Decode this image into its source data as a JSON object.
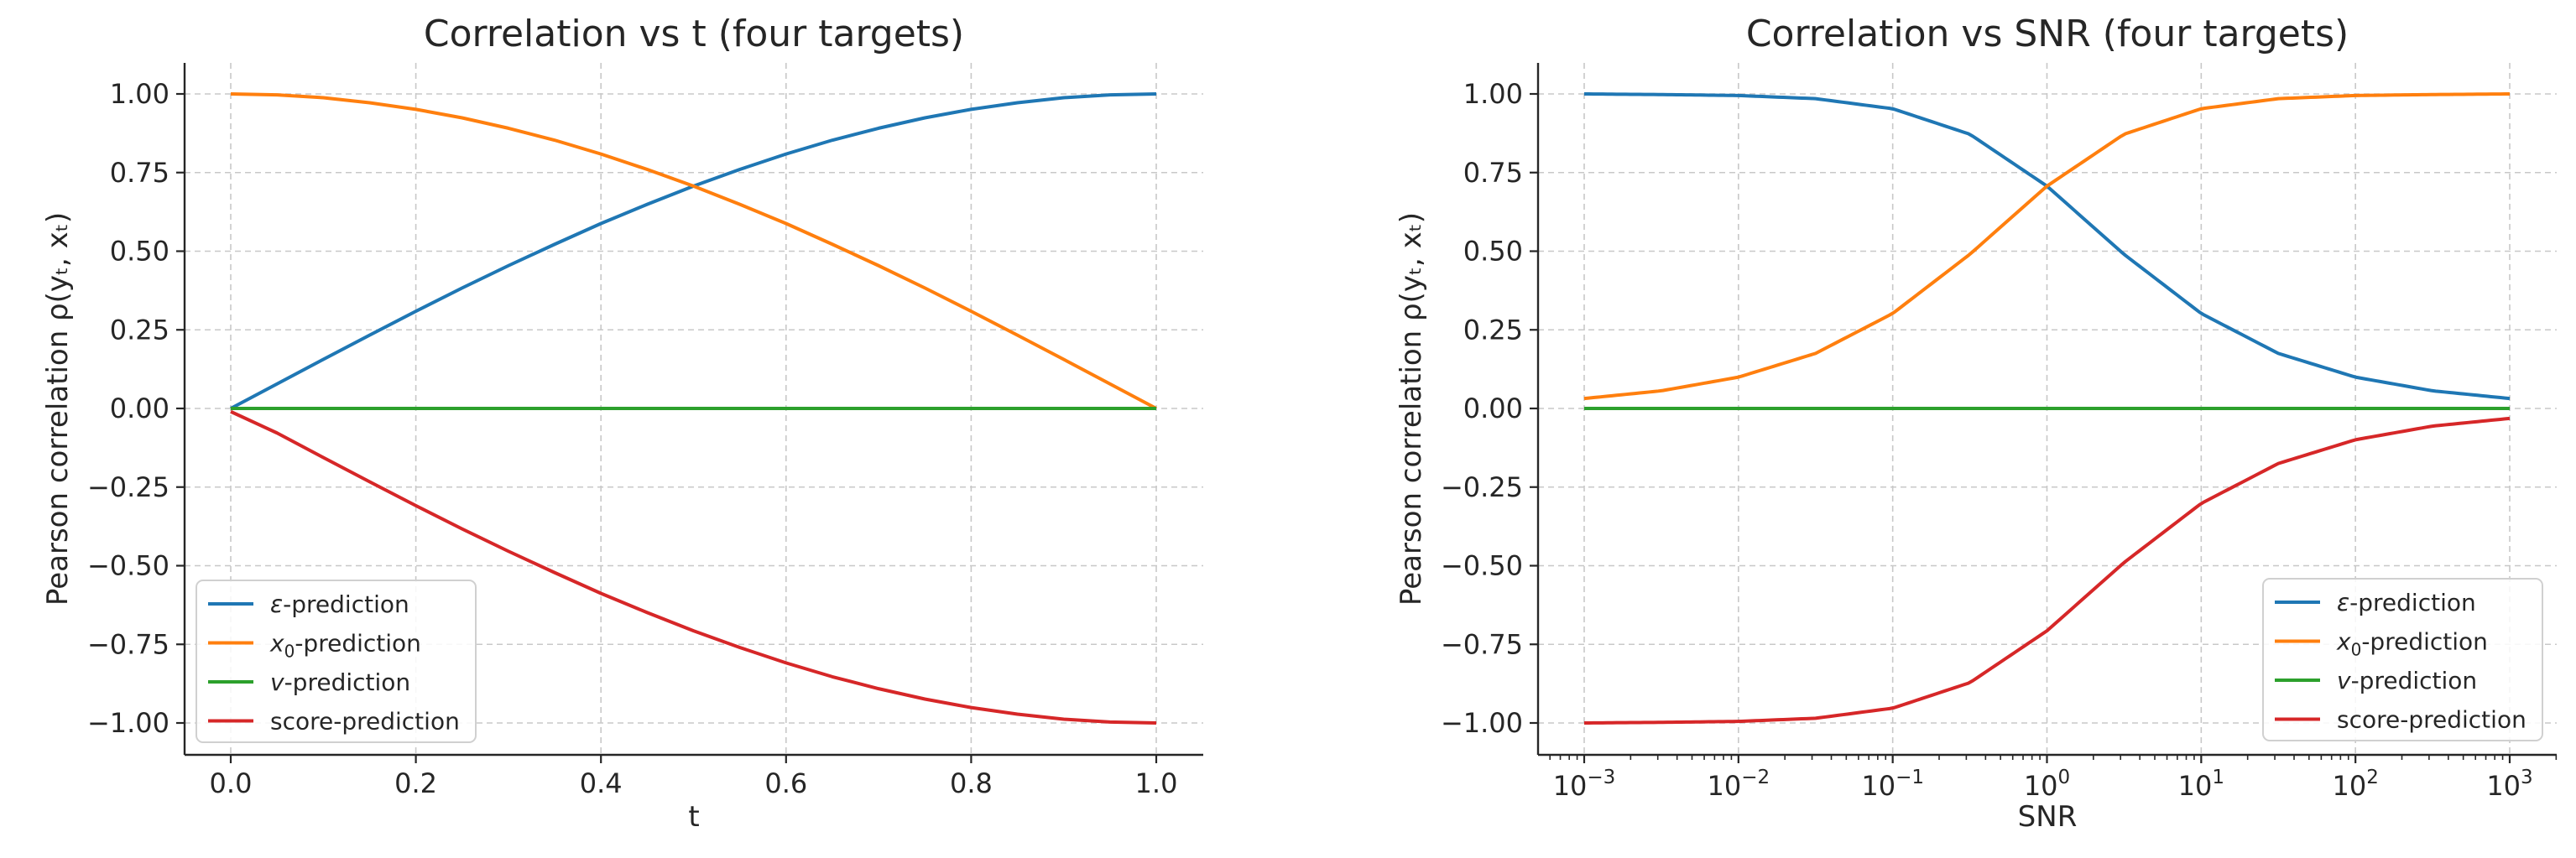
{
  "chart_data": [
    {
      "type": "line",
      "title": "Correlation vs t (four targets)",
      "xlabel": "t",
      "ylabel": "Pearson correlation ρ(yₜ, xₜ)",
      "xscale": "linear",
      "xlim": [
        0.0,
        1.0
      ],
      "ylim": [
        -1.0,
        1.0
      ],
      "xticks": [
        0.0,
        0.2,
        0.4,
        0.6,
        0.8,
        1.0
      ],
      "xtick_labels": [
        "0.0",
        "0.2",
        "0.4",
        "0.6",
        "0.8",
        "1.0"
      ],
      "yticks": [
        -1.0,
        -0.75,
        -0.5,
        -0.25,
        0.0,
        0.25,
        0.5,
        0.75,
        1.0
      ],
      "ytick_labels": [
        "−1.00",
        "−0.75",
        "−0.50",
        "−0.25",
        "0.00",
        "0.25",
        "0.50",
        "0.75",
        "1.00"
      ],
      "grid": true,
      "legend_position": "lower-left",
      "series": [
        {
          "name": "ε-prediction",
          "legend_main": "ε",
          "legend_sub": "",
          "legend_suffix": "-prediction",
          "color": "#1f77b4",
          "x": [
            0.0,
            0.05,
            0.1,
            0.15,
            0.2,
            0.25,
            0.3,
            0.35,
            0.4,
            0.45,
            0.5,
            0.55,
            0.6,
            0.65,
            0.7,
            0.75,
            0.8,
            0.85,
            0.9,
            0.95,
            1.0
          ],
          "y": [
            0.0,
            0.078,
            0.156,
            0.233,
            0.309,
            0.383,
            0.454,
            0.522,
            0.588,
            0.649,
            0.707,
            0.76,
            0.809,
            0.853,
            0.891,
            0.924,
            0.951,
            0.972,
            0.988,
            0.997,
            1.0
          ]
        },
        {
          "name": "x₀-prediction",
          "legend_main": "x",
          "legend_sub": "0",
          "legend_suffix": "-prediction",
          "color": "#ff7f0e",
          "x": [
            0.0,
            0.05,
            0.1,
            0.15,
            0.2,
            0.25,
            0.3,
            0.35,
            0.4,
            0.45,
            0.5,
            0.55,
            0.6,
            0.65,
            0.7,
            0.75,
            0.8,
            0.85,
            0.9,
            0.95,
            1.0
          ],
          "y": [
            1.0,
            0.997,
            0.988,
            0.972,
            0.951,
            0.924,
            0.891,
            0.853,
            0.809,
            0.76,
            0.707,
            0.649,
            0.588,
            0.522,
            0.454,
            0.383,
            0.309,
            0.233,
            0.156,
            0.078,
            0.0
          ]
        },
        {
          "name": "v-prediction",
          "legend_main": "v",
          "legend_sub": "",
          "legend_suffix": "-prediction",
          "color": "#2ca02c",
          "x": [
            0.0,
            0.5,
            1.0
          ],
          "y": [
            0.0,
            0.0,
            0.0
          ]
        },
        {
          "name": "score-prediction",
          "legend_main": "",
          "legend_sub": "",
          "legend_suffix": "score-prediction",
          "color": "#d62728",
          "x": [
            0.0,
            0.05,
            0.1,
            0.15,
            0.2,
            0.25,
            0.3,
            0.35,
            0.4,
            0.45,
            0.5,
            0.55,
            0.6,
            0.65,
            0.7,
            0.75,
            0.8,
            0.85,
            0.9,
            0.95,
            1.0
          ],
          "y": [
            -0.01,
            -0.078,
            -0.156,
            -0.233,
            -0.309,
            -0.383,
            -0.454,
            -0.522,
            -0.588,
            -0.649,
            -0.707,
            -0.76,
            -0.809,
            -0.853,
            -0.891,
            -0.924,
            -0.951,
            -0.972,
            -0.988,
            -0.997,
            -1.0
          ]
        }
      ]
    },
    {
      "type": "line",
      "title": "Correlation vs SNR (four targets)",
      "xlabel": "SNR",
      "ylabel": "Pearson correlation ρ(yₜ, xₜ)",
      "xscale": "log",
      "xlim": [
        0.001,
        1000
      ],
      "ylim": [
        -1.0,
        1.0
      ],
      "xticks": [
        0.001,
        0.01,
        0.1,
        1,
        10,
        100,
        1000
      ],
      "xtick_base": "10",
      "xtick_exponents": [
        "−3",
        "−2",
        "−1",
        "0",
        "1",
        "2",
        "3"
      ],
      "yticks": [
        -1.0,
        -0.75,
        -0.5,
        -0.25,
        0.0,
        0.25,
        0.5,
        0.75,
        1.0
      ],
      "ytick_labels": [
        "−1.00",
        "−0.75",
        "−0.50",
        "−0.25",
        "0.00",
        "0.25",
        "0.50",
        "0.75",
        "1.00"
      ],
      "grid": true,
      "legend_position": "lower-right",
      "series": [
        {
          "name": "ε-prediction",
          "legend_main": "ε",
          "legend_sub": "",
          "legend_suffix": "-prediction",
          "color": "#1f77b4",
          "x": [
            0.001,
            0.00316,
            0.01,
            0.0316,
            0.1,
            0.316,
            1,
            3.16,
            10,
            31.6,
            100,
            316,
            1000
          ],
          "y": [
            1.0,
            0.998,
            0.995,
            0.985,
            0.953,
            0.872,
            0.707,
            0.49,
            0.302,
            0.175,
            0.0995,
            0.0561,
            0.0316
          ]
        },
        {
          "name": "x₀-prediction",
          "legend_main": "x",
          "legend_sub": "0",
          "legend_suffix": "-prediction",
          "color": "#ff7f0e",
          "x": [
            0.001,
            0.00316,
            0.01,
            0.0316,
            0.1,
            0.316,
            1,
            3.16,
            10,
            31.6,
            100,
            316,
            1000
          ],
          "y": [
            0.0316,
            0.0561,
            0.0995,
            0.175,
            0.302,
            0.49,
            0.707,
            0.872,
            0.953,
            0.985,
            0.995,
            0.998,
            1.0
          ]
        },
        {
          "name": "v-prediction",
          "legend_main": "v",
          "legend_sub": "",
          "legend_suffix": "-prediction",
          "color": "#2ca02c",
          "x": [
            0.001,
            1,
            1000
          ],
          "y": [
            0.0,
            0.0,
            0.0
          ]
        },
        {
          "name": "score-prediction",
          "legend_main": "",
          "legend_sub": "",
          "legend_suffix": "score-prediction",
          "color": "#d62728",
          "x": [
            0.001,
            0.00316,
            0.01,
            0.0316,
            0.1,
            0.316,
            1,
            3.16,
            10,
            31.6,
            100,
            316,
            1000
          ],
          "y": [
            -1.0,
            -0.998,
            -0.995,
            -0.985,
            -0.953,
            -0.872,
            -0.707,
            -0.49,
            -0.302,
            -0.175,
            -0.0995,
            -0.0561,
            -0.0316
          ]
        }
      ]
    }
  ]
}
